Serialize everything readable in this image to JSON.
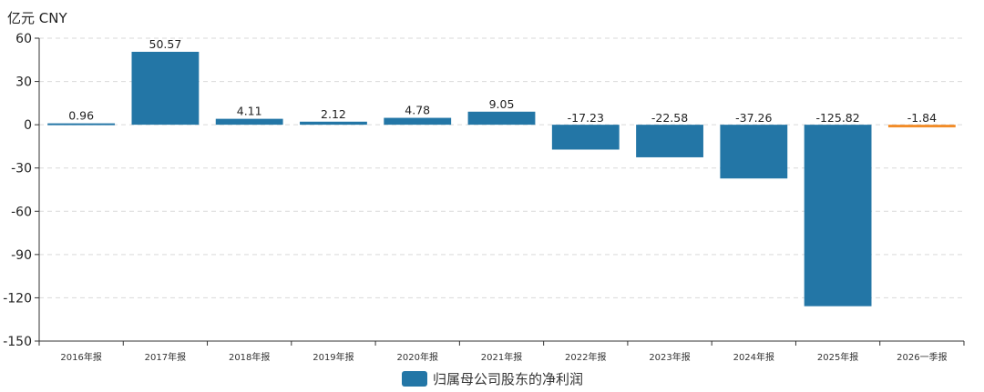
{
  "chart_data": {
    "type": "bar",
    "unit_label": "亿元 CNY",
    "categories": [
      "2016年报",
      "2017年报",
      "2018年报",
      "2019年报",
      "2020年报",
      "2021年报",
      "2022年报",
      "2023年报",
      "2024年报",
      "2025年报",
      "2026一季报"
    ],
    "series": [
      {
        "name": "归属母公司股东的净利润",
        "values": [
          0.96,
          50.57,
          4.11,
          2.12,
          4.78,
          9.05,
          -17.23,
          -22.58,
          -37.26,
          -125.82,
          -1.84
        ],
        "value_labels": [
          "0.96",
          "50.57",
          "4.11",
          "2.12",
          "4.78",
          "9.05",
          "-17.23",
          "-22.58",
          "-37.26",
          "-125.82",
          "-1.84"
        ],
        "color": "#2376a6",
        "highlight_color": "#f28c28",
        "highlight_index": 10
      }
    ],
    "yticks": [
      60,
      30,
      0,
      -30,
      -60,
      -90,
      -120,
      -150
    ],
    "ytick_labels": [
      "60",
      "30",
      "0",
      "-30",
      "-60",
      "-90",
      "-120",
      "-150"
    ],
    "ylim": [
      -150,
      60
    ],
    "grid": true,
    "legend_position": "bottom-center"
  }
}
